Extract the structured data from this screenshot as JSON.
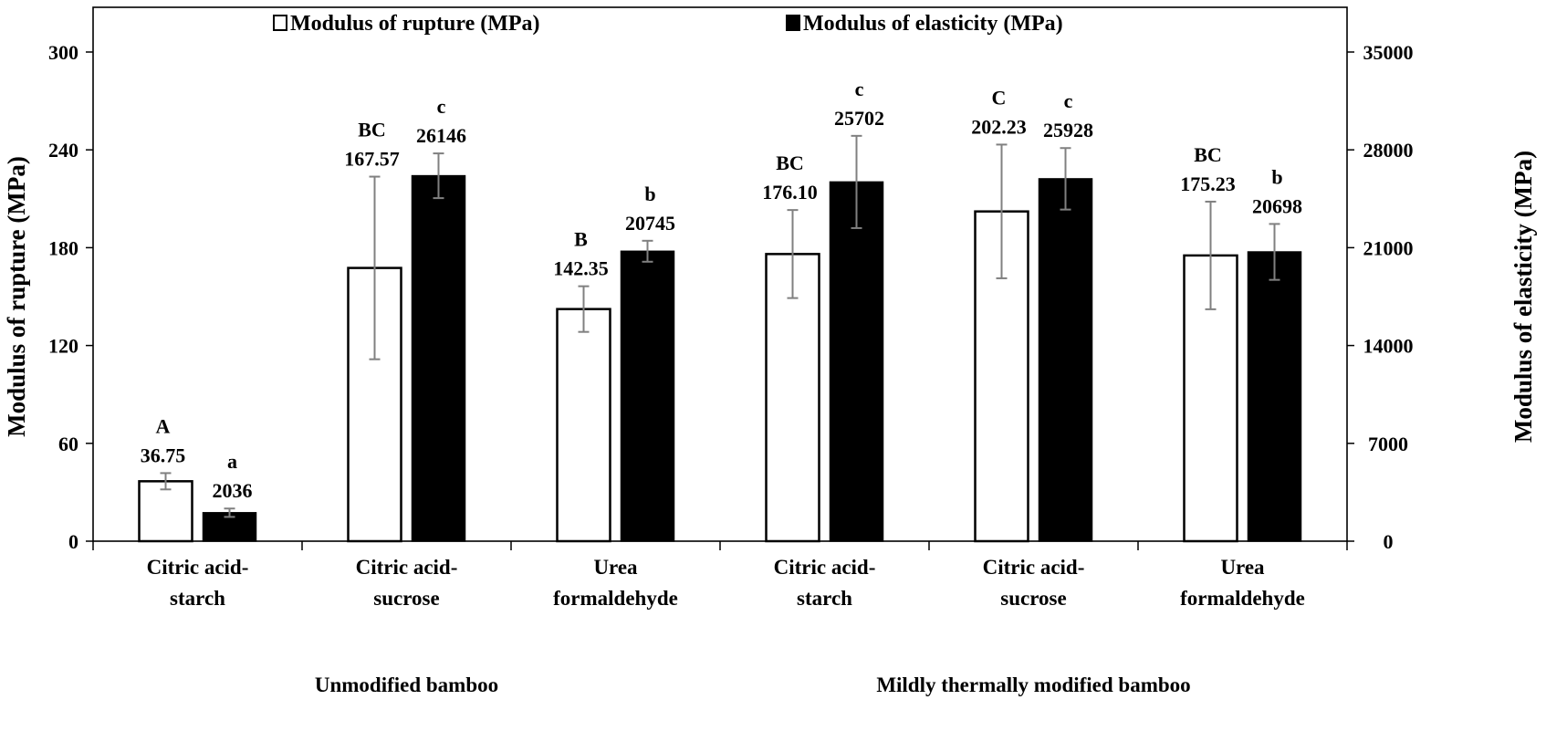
{
  "chart_data": {
    "type": "bar",
    "groups": [
      "Unmodified bamboo",
      "Mildly thermally modified bamboo"
    ],
    "categories": [
      [
        "Citric acid-",
        "starch"
      ],
      [
        "Citric acid-",
        "sucrose"
      ],
      [
        "Urea",
        "formaldehyde"
      ],
      [
        "Citric acid-",
        "starch"
      ],
      [
        "Citric acid-",
        "sucrose"
      ],
      [
        "Urea",
        "formaldehyde"
      ]
    ],
    "series": [
      {
        "name": "Modulus of rupture (MPa)",
        "axis": "left",
        "color": "#ffffff",
        "values": [
          36.75,
          167.57,
          142.35,
          176.1,
          202.23,
          175.23
        ],
        "value_labels": [
          "36.75",
          "167.57",
          "142.35",
          "176.10",
          "202.23",
          "175.23"
        ],
        "letters": [
          "A",
          "BC",
          "B",
          "BC",
          "C",
          "BC"
        ],
        "error": [
          5,
          56,
          14,
          27,
          41,
          33
        ]
      },
      {
        "name": "Modulus of elasticity (MPa)",
        "axis": "right",
        "color": "#000000",
        "values": [
          2036,
          26146,
          20745,
          25702,
          25928,
          20698
        ],
        "value_labels": [
          "2036",
          "26146",
          "20745",
          "25702",
          "25928",
          "20698"
        ],
        "letters": [
          "a",
          "c",
          "b",
          "c",
          "c",
          "b"
        ],
        "error": [
          300,
          1600,
          750,
          3300,
          2200,
          2000
        ]
      }
    ],
    "ylabel": "Modulus of rupture (MPa)",
    "y2label": "Modulus of elasticity (MPa)",
    "ylim": [
      0,
      300
    ],
    "y2lim": [
      0,
      35000
    ],
    "yticks": [
      0,
      60,
      120,
      180,
      240,
      300
    ],
    "y2ticks": [
      0,
      7000,
      14000,
      21000,
      28000,
      35000
    ],
    "legend_position": "top",
    "grid": false
  }
}
